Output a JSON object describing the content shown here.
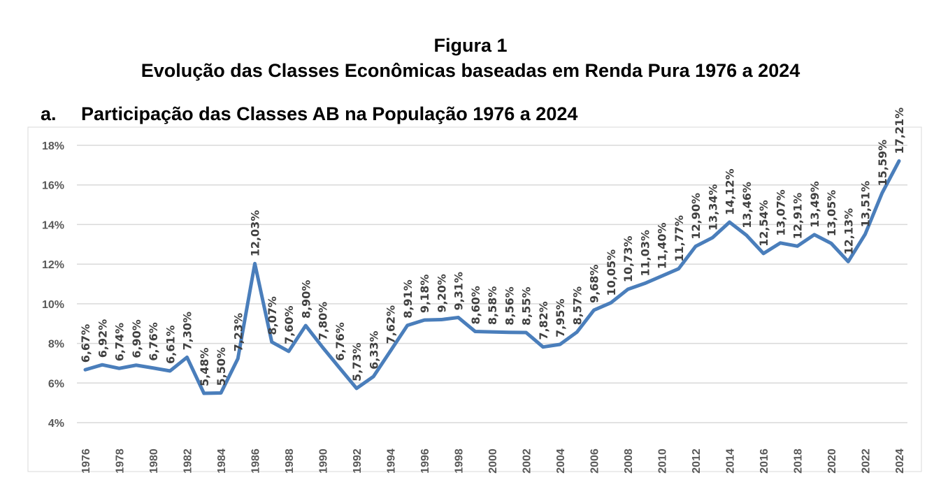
{
  "figure": {
    "number": "Figura 1",
    "title": "Evolução das Classes Econômicas baseadas em Renda Pura 1976 a 2024"
  },
  "panel": {
    "letter": "a.",
    "title": "Participação das Classes AB na População 1976 a 2024"
  },
  "chart_data": {
    "type": "line",
    "title": "Participação das Classes AB na População 1976 a 2024",
    "xlabel": "",
    "ylabel": "",
    "ylim": [
      4,
      18
    ],
    "yticks": [
      4,
      6,
      8,
      10,
      12,
      14,
      16,
      18
    ],
    "ytick_labels": [
      "4%",
      "6%",
      "8%",
      "10%",
      "12%",
      "14%",
      "16%",
      "18%"
    ],
    "grid": true,
    "line_color": "#4a7ebb",
    "x": [
      1976,
      1977,
      1978,
      1979,
      1980,
      1981,
      1982,
      1983,
      1984,
      1985,
      1986,
      1987,
      1988,
      1989,
      1990,
      1991,
      1992,
      1993,
      1994,
      1995,
      1996,
      1997,
      1998,
      1999,
      2000,
      2001,
      2002,
      2003,
      2004,
      2005,
      2006,
      2007,
      2008,
      2009,
      2010,
      2011,
      2012,
      2013,
      2014,
      2015,
      2016,
      2017,
      2018,
      2019,
      2020,
      2021,
      2022,
      2023,
      2024
    ],
    "xtick_labels": [
      "1976",
      "1978",
      "1980",
      "1982",
      "1984",
      "1986",
      "1988",
      "1990",
      "1992",
      "1994",
      "1996",
      "1998",
      "2000",
      "2002",
      "2004",
      "2006",
      "2008",
      "2010",
      "2012",
      "2014",
      "2016",
      "2018",
      "2020",
      "2022",
      "2024"
    ],
    "values": [
      6.67,
      6.92,
      6.74,
      6.9,
      6.76,
      6.61,
      7.3,
      5.48,
      5.5,
      7.23,
      12.03,
      8.07,
      7.6,
      8.9,
      7.8,
      6.76,
      5.73,
      6.33,
      7.62,
      8.91,
      9.18,
      9.2,
      9.31,
      8.6,
      8.58,
      8.56,
      8.55,
      7.82,
      7.95,
      8.57,
      9.68,
      10.05,
      10.73,
      11.03,
      11.4,
      11.77,
      12.9,
      13.34,
      14.12,
      13.46,
      12.54,
      13.07,
      12.91,
      13.49,
      13.05,
      12.13,
      13.51,
      15.59,
      17.21
    ],
    "data_labels": [
      "6,67%",
      "6,92%",
      "6,74%",
      "6,90%",
      "6,76%",
      "6,61%",
      "7,30%",
      "5,48%",
      "5,50%",
      "7,23%",
      "12,03%",
      "8,07%",
      "7,60%",
      "8,90%",
      "7,80%",
      "6,76%",
      "5,73%",
      "6,33%",
      "7,62%",
      "8,91%",
      "9,18%",
      "9,20%",
      "9,31%",
      "8,60%",
      "8,58%",
      "8,56%",
      "8,55%",
      "7,82%",
      "7,95%",
      "8,57%",
      "9,68%",
      "10,05%",
      "10,73%",
      "11,03%",
      "11,40%",
      "11,77%",
      "12,90%",
      "13,34%",
      "14,12%",
      "13,46%",
      "12,54%",
      "13,07%",
      "12,91%",
      "13,49%",
      "13,05%",
      "12,13%",
      "13,51%",
      "15,59%",
      "17,21%"
    ]
  }
}
